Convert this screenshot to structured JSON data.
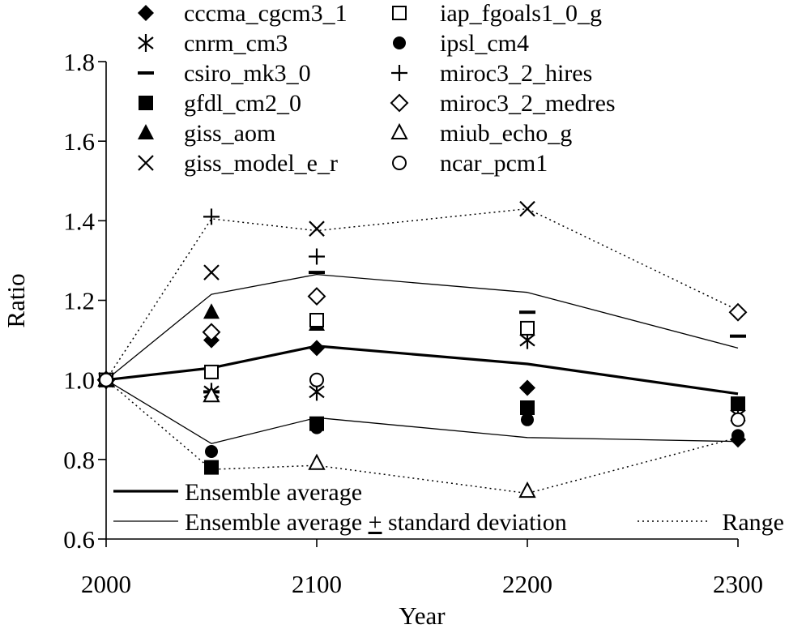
{
  "chart_data": {
    "type": "scatter",
    "title": "",
    "xlabel": "Year",
    "ylabel": "Ratio",
    "xlim": [
      2000,
      2300
    ],
    "ylim": [
      0.6,
      1.8
    ],
    "x_ticks": [
      "2000",
      "2100",
      "2200",
      "2300"
    ],
    "y_ticks": [
      "0.6",
      "0.8",
      "1.0",
      "1.2",
      "1.4",
      "1.6",
      "1.8"
    ],
    "grid": false,
    "legend_position": "top",
    "colors": {
      "ink": "#000000",
      "background": "#ffffff"
    },
    "series": [
      {
        "name": "cccma_cgcm3_1",
        "marker": "diamond-filled",
        "points": [
          [
            2000,
            1.0
          ],
          [
            2050,
            1.1
          ],
          [
            2100,
            1.08
          ],
          [
            2200,
            0.98
          ],
          [
            2300,
            0.85
          ]
        ]
      },
      {
        "name": "cnrm_cm3",
        "marker": "asterisk",
        "points": [
          [
            2000,
            1.0
          ],
          [
            2050,
            0.97
          ],
          [
            2100,
            0.97
          ],
          [
            2200,
            1.1
          ],
          [
            2300,
            0.91
          ]
        ]
      },
      {
        "name": "csiro_mk3_0",
        "marker": "dash",
        "points": [
          [
            2000,
            1.0
          ],
          [
            2050,
            0.97
          ],
          [
            2100,
            1.27
          ],
          [
            2200,
            1.17
          ],
          [
            2300,
            1.11
          ]
        ]
      },
      {
        "name": "gfdl_cm2_0",
        "marker": "square-filled",
        "points": [
          [
            2000,
            1.0
          ],
          [
            2050,
            0.78
          ],
          [
            2100,
            0.89
          ],
          [
            2200,
            0.93
          ],
          [
            2300,
            0.94
          ]
        ]
      },
      {
        "name": "giss_aom",
        "marker": "triangle-filled",
        "points": [
          [
            2000,
            1.0
          ],
          [
            2050,
            1.17
          ],
          [
            2100,
            1.14
          ]
        ]
      },
      {
        "name": "giss_model_e_r",
        "marker": "x",
        "points": [
          [
            2000,
            1.0
          ],
          [
            2050,
            1.27
          ],
          [
            2100,
            1.38
          ],
          [
            2200,
            1.43
          ]
        ]
      },
      {
        "name": "iap_fgoals1_0_g",
        "marker": "square-open",
        "points": [
          [
            2000,
            1.0
          ],
          [
            2050,
            1.02
          ],
          [
            2100,
            1.15
          ],
          [
            2200,
            1.13
          ]
        ]
      },
      {
        "name": "ipsl_cm4",
        "marker": "circle-filled",
        "points": [
          [
            2000,
            1.0
          ],
          [
            2050,
            0.82
          ],
          [
            2100,
            0.88
          ],
          [
            2200,
            0.9
          ],
          [
            2300,
            0.86
          ]
        ]
      },
      {
        "name": "miroc3_2_hires",
        "marker": "plus",
        "points": [
          [
            2000,
            1.0
          ],
          [
            2050,
            1.41
          ],
          [
            2100,
            1.31
          ]
        ]
      },
      {
        "name": "miroc3_2_medres",
        "marker": "diamond-open",
        "points": [
          [
            2000,
            1.0
          ],
          [
            2050,
            1.12
          ],
          [
            2100,
            1.21
          ],
          [
            2300,
            1.17
          ]
        ]
      },
      {
        "name": "miub_echo_g",
        "marker": "triangle-open",
        "points": [
          [
            2000,
            1.0
          ],
          [
            2050,
            0.96
          ],
          [
            2100,
            0.79
          ],
          [
            2200,
            0.72
          ]
        ]
      },
      {
        "name": "ncar_pcm1",
        "marker": "circle-open",
        "points": [
          [
            2000,
            1.0
          ],
          [
            2100,
            1.0
          ],
          [
            2300,
            0.9
          ]
        ]
      }
    ],
    "lines": [
      {
        "name": "Ensemble average",
        "style": "thick-solid",
        "x": [
          2000,
          2050,
          2100,
          2200,
          2300
        ],
        "y": [
          1.0,
          1.03,
          1.085,
          1.04,
          0.965
        ]
      },
      {
        "name": "Ensemble average ± standard deviation",
        "style": "thin-solid",
        "part": "upper",
        "x": [
          2000,
          2050,
          2100,
          2200,
          2300
        ],
        "y": [
          1.0,
          1.215,
          1.265,
          1.22,
          1.08
        ]
      },
      {
        "name": "Ensemble average ± standard deviation",
        "style": "thin-solid",
        "part": "lower",
        "x": [
          2000,
          2050,
          2100,
          2200,
          2300
        ],
        "y": [
          1.0,
          0.84,
          0.905,
          0.855,
          0.845
        ]
      },
      {
        "name": "Range",
        "style": "dotted",
        "part": "upper",
        "x": [
          2000,
          2050,
          2100,
          2200,
          2300
        ],
        "y": [
          1.0,
          1.405,
          1.375,
          1.43,
          1.175
        ]
      },
      {
        "name": "Range",
        "style": "dotted",
        "part": "lower",
        "x": [
          2000,
          2050,
          2100,
          2200,
          2300
        ],
        "y": [
          1.0,
          0.775,
          0.785,
          0.715,
          0.855
        ]
      }
    ],
    "line_legend": {
      "ensemble_average": "Ensemble average",
      "std_prefix": "Ensemble average ",
      "std_symbol": "+",
      "std_suffix": " standard deviation",
      "range": "Range"
    }
  }
}
